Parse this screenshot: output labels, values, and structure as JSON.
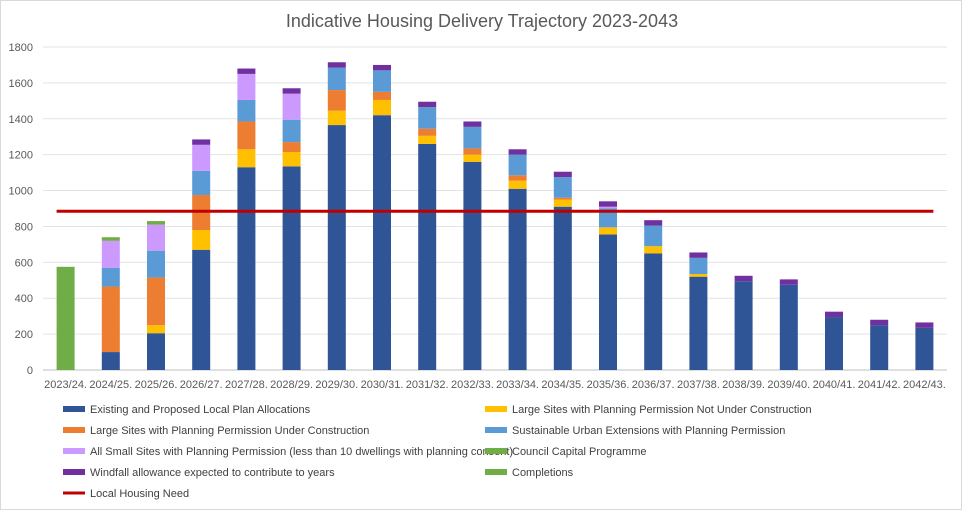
{
  "chart_data": {
    "type": "bar",
    "stacked": true,
    "title": "Indicative Housing Delivery Trajectory 2023-2043",
    "xlabel": "",
    "ylabel": "",
    "ylim": [
      0,
      1800
    ],
    "yticks": [
      0,
      200,
      400,
      600,
      800,
      1000,
      1200,
      1400,
      1600,
      1800
    ],
    "grid": true,
    "legend_position": "bottom",
    "categories": [
      "2023/24.",
      "2024/25.",
      "2025/26.",
      "2026/27.",
      "2027/28.",
      "2028/29.",
      "2029/30.",
      "2030/31.",
      "2031/32.",
      "2032/33.",
      "2033/34.",
      "2034/35.",
      "2035/36.",
      "2036/37.",
      "2037/38.",
      "2038/39.",
      "2039/40.",
      "2040/41.",
      "2041/42.",
      "2042/43."
    ],
    "series": [
      {
        "name": "Existing and Proposed Local Plan Allocations",
        "color": "#2F5597",
        "values": [
          0,
          100,
          205,
          670,
          1130,
          1135,
          1365,
          1420,
          1260,
          1160,
          1010,
          910,
          755,
          650,
          520,
          495,
          475,
          295,
          250,
          235
        ]
      },
      {
        "name": "Large Sites with Planning Permission Not Under Construction",
        "color": "#FFC000",
        "values": [
          0,
          0,
          45,
          110,
          100,
          80,
          80,
          85,
          45,
          40,
          45,
          40,
          40,
          40,
          15,
          0,
          0,
          0,
          0,
          0
        ]
      },
      {
        "name": "Large Sites with Planning Permission Under Construction",
        "color": "#ED7D31",
        "values": [
          0,
          365,
          265,
          195,
          155,
          55,
          115,
          45,
          40,
          35,
          30,
          10,
          0,
          0,
          0,
          0,
          0,
          0,
          0,
          0
        ]
      },
      {
        "name": "Sustainable Urban Extensions with Planning Permission",
        "color": "#5B9BD5",
        "values": [
          0,
          105,
          150,
          135,
          120,
          125,
          125,
          120,
          120,
          120,
          115,
          115,
          105,
          115,
          90,
          0,
          0,
          0,
          0,
          0
        ]
      },
      {
        "name": "All Small Sites with Planning Permission (less than 10 dwellings with planning consent)",
        "color": "#CC99FF",
        "values": [
          0,
          150,
          145,
          145,
          145,
          145,
          0,
          0,
          0,
          0,
          0,
          0,
          10,
          0,
          0,
          0,
          0,
          0,
          0,
          0
        ]
      },
      {
        "name": "Council Capital Programme",
        "color": "#70AD47",
        "values": [
          0,
          20,
          20,
          0,
          0,
          0,
          0,
          0,
          0,
          0,
          0,
          0,
          0,
          0,
          0,
          0,
          0,
          0,
          0,
          0
        ]
      },
      {
        "name": "Windfall allowance expected to contribute to years",
        "color": "#7030A0",
        "values": [
          0,
          0,
          0,
          30,
          30,
          30,
          30,
          30,
          30,
          30,
          30,
          30,
          30,
          30,
          30,
          30,
          30,
          30,
          30,
          30
        ]
      },
      {
        "name": "Completions",
        "color": "#70AD47",
        "values": [
          575,
          0,
          0,
          0,
          0,
          0,
          0,
          0,
          0,
          0,
          0,
          0,
          0,
          0,
          0,
          0,
          0,
          0,
          0,
          0
        ]
      }
    ],
    "lines": [
      {
        "name": "Local Housing Need",
        "color": "#C00000",
        "value": 885
      }
    ]
  }
}
